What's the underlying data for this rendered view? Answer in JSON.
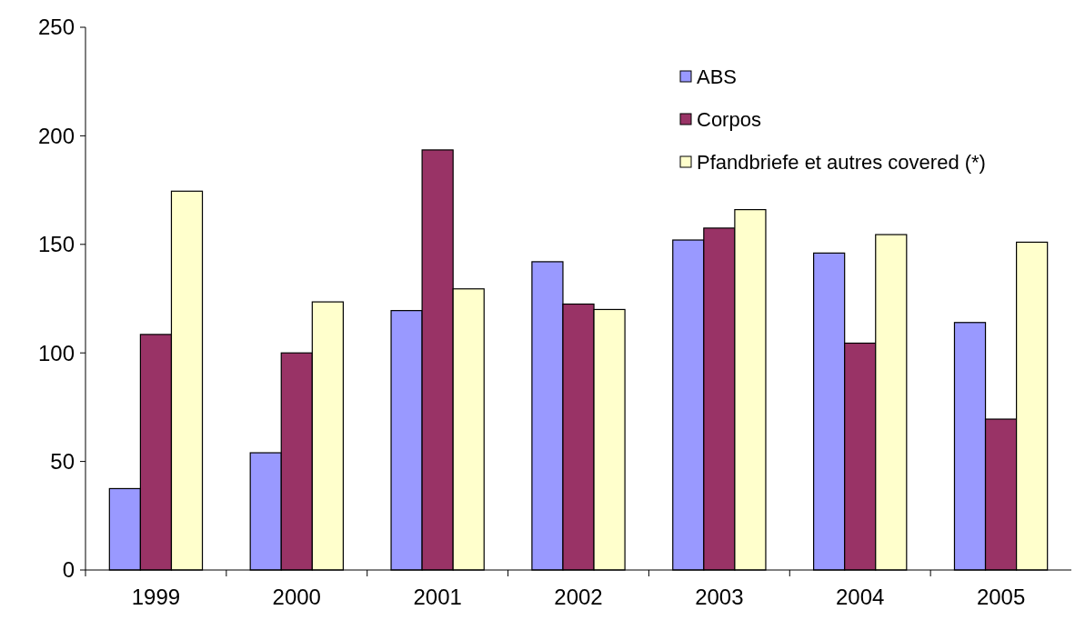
{
  "chart_data": {
    "type": "bar",
    "categories": [
      "1999",
      "2000",
      "2001",
      "2002",
      "2003",
      "2004",
      "2005"
    ],
    "series": [
      {
        "name": "ABS",
        "color": "#9999ff",
        "values": [
          37.5,
          54,
          119.5,
          142,
          152,
          146,
          114
        ]
      },
      {
        "name": "Corpos",
        "color": "#993366",
        "values": [
          108.5,
          100,
          193.5,
          122.5,
          157.5,
          104.5,
          69.5
        ]
      },
      {
        "name": "Pfandbriefe et autres covered (*)",
        "color": "#ffffcc",
        "values": [
          174.5,
          123.5,
          129.5,
          120,
          166,
          154.5,
          151
        ]
      }
    ],
    "ylim": [
      0,
      250
    ],
    "yticks": [
      0,
      50,
      100,
      150,
      200,
      250
    ],
    "grid": false,
    "legend": "top right"
  }
}
